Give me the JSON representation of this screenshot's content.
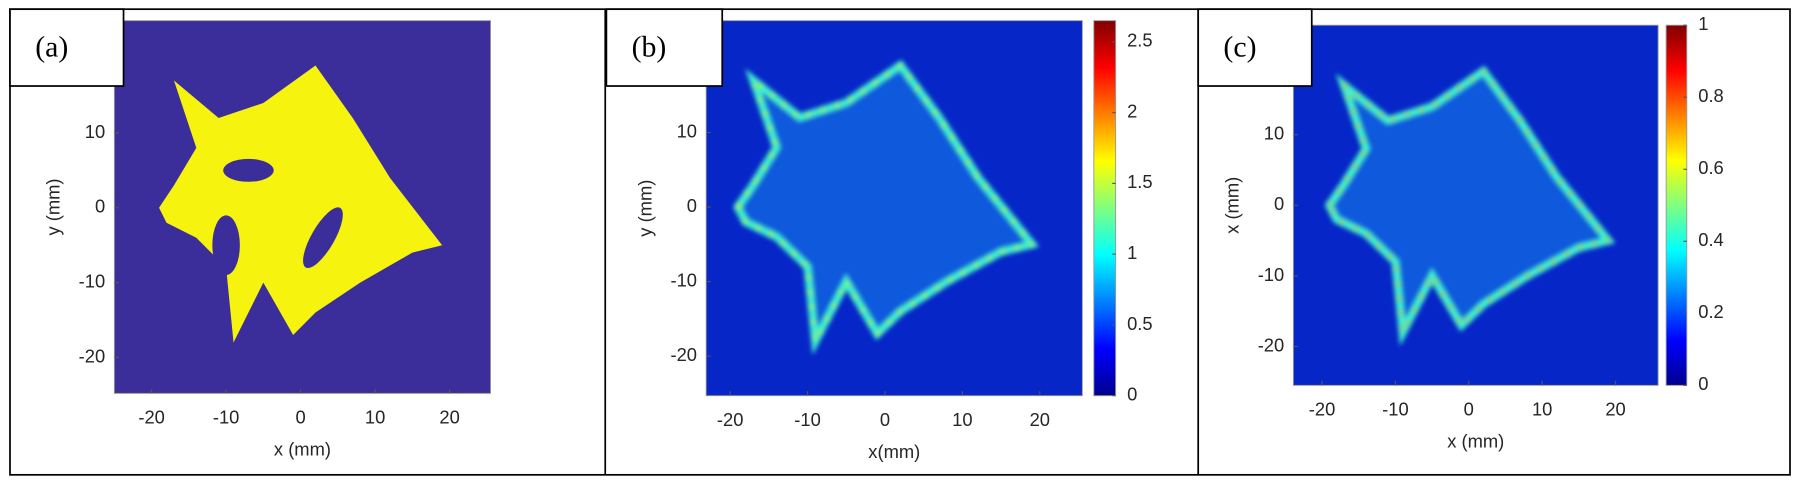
{
  "chart_data": [
    {
      "type": "heatmap",
      "panel_label": "(a)",
      "xlabel": "x (mm)",
      "ylabel": "y (mm)",
      "xlim": [
        -25,
        25.5
      ],
      "ylim": [
        -24.8,
        25
      ],
      "xticks": [
        -20,
        -10,
        0,
        10,
        20
      ],
      "yticks": [
        -20,
        -10,
        0,
        10
      ]
    },
    {
      "type": "heatmap",
      "panel_label": "(b)",
      "xlabel": "x(mm)",
      "ylabel": "y (mm)",
      "xlim": [
        -23.1,
        25.5
      ],
      "ylim": [
        -25.3,
        25
      ],
      "xticks": [
        -20,
        -10,
        0,
        10,
        20
      ],
      "yticks": [
        -20,
        -10,
        0,
        10
      ],
      "clim": [
        0,
        2.65
      ],
      "cticks": [
        0,
        0.5,
        1,
        1.5,
        2,
        2.5
      ]
    },
    {
      "type": "heatmap",
      "panel_label": "(c)",
      "xlabel": "x (mm)",
      "ylabel": "x (mm)",
      "xlim": [
        -23.9,
        25.8
      ],
      "ylim": [
        -25.5,
        25.5
      ],
      "xticks": [
        -20,
        -10,
        0,
        10,
        20
      ],
      "yticks": [
        -20,
        -10,
        0,
        10
      ],
      "clim": [
        0,
        1
      ],
      "cticks": [
        0,
        0.2,
        0.4,
        0.6,
        0.8,
        1
      ]
    }
  ]
}
